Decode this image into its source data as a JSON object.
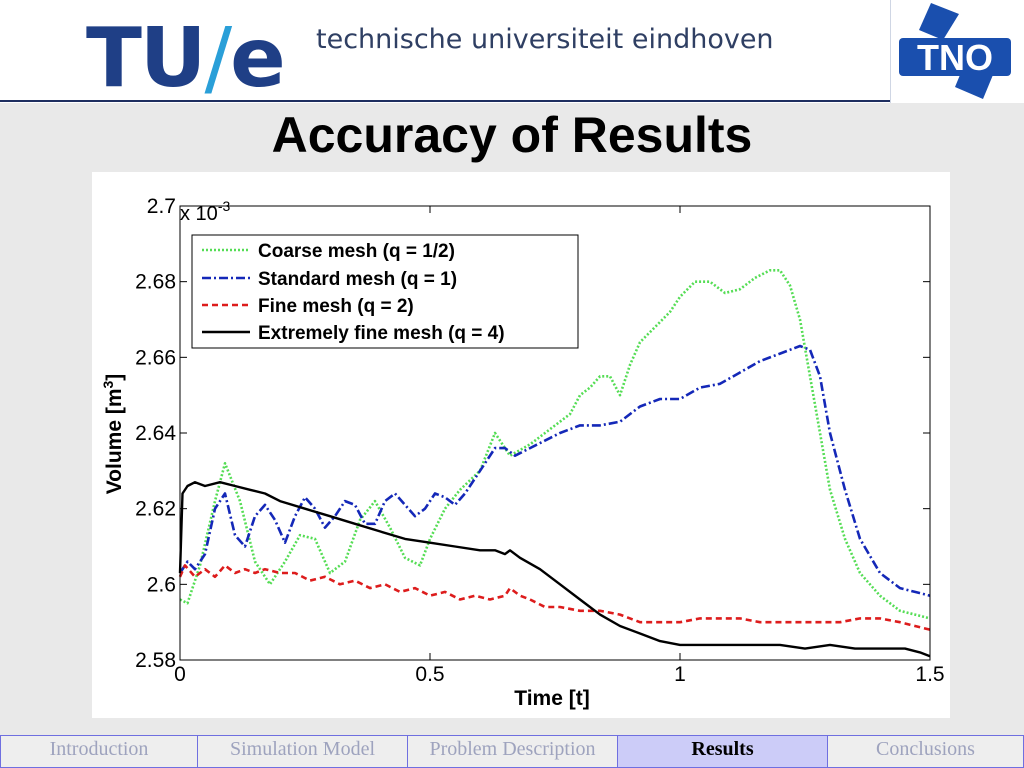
{
  "header": {
    "logo_text": "TU",
    "logo_slash": "/",
    "logo_e": "e",
    "university": "technische universiteit eindhoven",
    "partner_logo": "TNO"
  },
  "slide": {
    "title": "Accuracy of Results"
  },
  "chart_data": {
    "type": "line",
    "xlabel": "Time [t]",
    "ylabel": "Volume [m",
    "ylabel_sup": "3",
    "ylabel_end": "]",
    "y_multiplier_base": "x 10",
    "y_multiplier_exp": "-3",
    "xlim": [
      0,
      1.5
    ],
    "ylim": [
      2.58,
      2.7
    ],
    "xticks": [
      "0",
      "0.5",
      "1",
      "1.5"
    ],
    "yticks": [
      "2.58",
      "2.6",
      "2.62",
      "2.64",
      "2.66",
      "2.68",
      "2.7"
    ],
    "grid": false,
    "legend_position": "top-left",
    "series": [
      {
        "name": "Coarse mesh (q = 1/2)",
        "color": "#55dd55",
        "dash": "2,2",
        "x": [
          0,
          0.015,
          0.04,
          0.07,
          0.09,
          0.12,
          0.15,
          0.18,
          0.21,
          0.24,
          0.27,
          0.3,
          0.33,
          0.36,
          0.39,
          0.42,
          0.45,
          0.48,
          0.5,
          0.53,
          0.56,
          0.6,
          0.63,
          0.66,
          0.7,
          0.74,
          0.78,
          0.8,
          0.82,
          0.84,
          0.86,
          0.88,
          0.9,
          0.92,
          0.95,
          0.98,
          1.0,
          1.03,
          1.06,
          1.09,
          1.12,
          1.15,
          1.18,
          1.2,
          1.22,
          1.24,
          1.26,
          1.28,
          1.3,
          1.33,
          1.36,
          1.4,
          1.44,
          1.47,
          1.5
        ],
        "y": [
          2.596,
          2.595,
          2.605,
          2.622,
          2.632,
          2.622,
          2.606,
          2.6,
          2.606,
          2.613,
          2.612,
          2.603,
          2.606,
          2.617,
          2.622,
          2.615,
          2.607,
          2.605,
          2.612,
          2.62,
          2.625,
          2.63,
          2.64,
          2.634,
          2.637,
          2.641,
          2.645,
          2.65,
          2.652,
          2.655,
          2.655,
          2.65,
          2.658,
          2.664,
          2.668,
          2.672,
          2.676,
          2.68,
          2.68,
          2.677,
          2.678,
          2.681,
          2.683,
          2.683,
          2.679,
          2.67,
          2.655,
          2.64,
          2.625,
          2.612,
          2.603,
          2.597,
          2.593,
          2.592,
          2.591
        ]
      },
      {
        "name": "Standard mesh (q = 1)",
        "color": "#1428b8",
        "dash": "9,3,2,3",
        "x": [
          0,
          0.015,
          0.03,
          0.05,
          0.07,
          0.09,
          0.11,
          0.13,
          0.15,
          0.17,
          0.19,
          0.21,
          0.23,
          0.25,
          0.27,
          0.29,
          0.31,
          0.33,
          0.35,
          0.37,
          0.39,
          0.41,
          0.43,
          0.45,
          0.47,
          0.49,
          0.51,
          0.53,
          0.55,
          0.57,
          0.59,
          0.61,
          0.63,
          0.65,
          0.67,
          0.7,
          0.73,
          0.76,
          0.8,
          0.84,
          0.88,
          0.92,
          0.96,
          1.0,
          1.04,
          1.08,
          1.12,
          1.16,
          1.2,
          1.24,
          1.26,
          1.28,
          1.3,
          1.33,
          1.36,
          1.4,
          1.44,
          1.47,
          1.5
        ],
        "y": [
          2.603,
          2.606,
          2.604,
          2.608,
          2.62,
          2.624,
          2.613,
          2.61,
          2.618,
          2.621,
          2.617,
          2.611,
          2.618,
          2.623,
          2.62,
          2.615,
          2.618,
          2.622,
          2.621,
          2.616,
          2.616,
          2.622,
          2.624,
          2.621,
          2.618,
          2.62,
          2.624,
          2.623,
          2.621,
          2.624,
          2.628,
          2.632,
          2.636,
          2.636,
          2.634,
          2.636,
          2.638,
          2.64,
          2.642,
          2.642,
          2.643,
          2.647,
          2.649,
          2.649,
          2.652,
          2.653,
          2.656,
          2.659,
          2.661,
          2.663,
          2.662,
          2.655,
          2.64,
          2.625,
          2.612,
          2.603,
          2.599,
          2.598,
          2.597
        ]
      },
      {
        "name": "Fine mesh (q = 2)",
        "color": "#dd1c1c",
        "dash": "6,4",
        "x": [
          0,
          0.01,
          0.03,
          0.05,
          0.07,
          0.09,
          0.11,
          0.13,
          0.15,
          0.17,
          0.2,
          0.23,
          0.26,
          0.29,
          0.32,
          0.35,
          0.38,
          0.41,
          0.44,
          0.47,
          0.5,
          0.53,
          0.56,
          0.59,
          0.62,
          0.65,
          0.66,
          0.68,
          0.7,
          0.73,
          0.76,
          0.8,
          0.84,
          0.88,
          0.92,
          0.96,
          1.0,
          1.04,
          1.08,
          1.12,
          1.16,
          1.2,
          1.24,
          1.28,
          1.32,
          1.36,
          1.4,
          1.44,
          1.47,
          1.5
        ],
        "y": [
          2.602,
          2.605,
          2.602,
          2.604,
          2.602,
          2.605,
          2.603,
          2.604,
          2.603,
          2.604,
          2.603,
          2.603,
          2.601,
          2.602,
          2.6,
          2.601,
          2.599,
          2.6,
          2.598,
          2.599,
          2.597,
          2.598,
          2.596,
          2.597,
          2.596,
          2.597,
          2.599,
          2.597,
          2.596,
          2.594,
          2.594,
          2.593,
          2.593,
          2.592,
          2.59,
          2.59,
          2.59,
          2.591,
          2.591,
          2.591,
          2.59,
          2.59,
          2.59,
          2.59,
          2.59,
          2.591,
          2.591,
          2.59,
          2.589,
          2.588
        ]
      },
      {
        "name": "Extremely fine mesh (q = 4)",
        "color": "#000000",
        "dash": "",
        "x": [
          0,
          0.005,
          0.015,
          0.03,
          0.05,
          0.08,
          0.11,
          0.14,
          0.17,
          0.2,
          0.25,
          0.3,
          0.35,
          0.4,
          0.45,
          0.5,
          0.55,
          0.6,
          0.63,
          0.65,
          0.66,
          0.68,
          0.72,
          0.76,
          0.8,
          0.84,
          0.88,
          0.92,
          0.96,
          1.0,
          1.05,
          1.1,
          1.15,
          1.2,
          1.25,
          1.3,
          1.35,
          1.4,
          1.45,
          1.48,
          1.5
        ],
        "y": [
          2.603,
          2.624,
          2.626,
          2.627,
          2.626,
          2.627,
          2.626,
          2.625,
          2.624,
          2.622,
          2.62,
          2.618,
          2.616,
          2.614,
          2.612,
          2.611,
          2.61,
          2.609,
          2.609,
          2.608,
          2.609,
          2.607,
          2.604,
          2.6,
          2.596,
          2.592,
          2.589,
          2.587,
          2.585,
          2.584,
          2.584,
          2.584,
          2.584,
          2.584,
          2.583,
          2.584,
          2.583,
          2.583,
          2.583,
          2.582,
          2.581
        ]
      }
    ]
  },
  "nav": {
    "items": [
      {
        "label": "Introduction",
        "active": false
      },
      {
        "label": "Simulation Model",
        "active": false
      },
      {
        "label": "Problem Description",
        "active": false
      },
      {
        "label": "Results",
        "active": true
      },
      {
        "label": "Conclusions",
        "active": false
      }
    ]
  }
}
